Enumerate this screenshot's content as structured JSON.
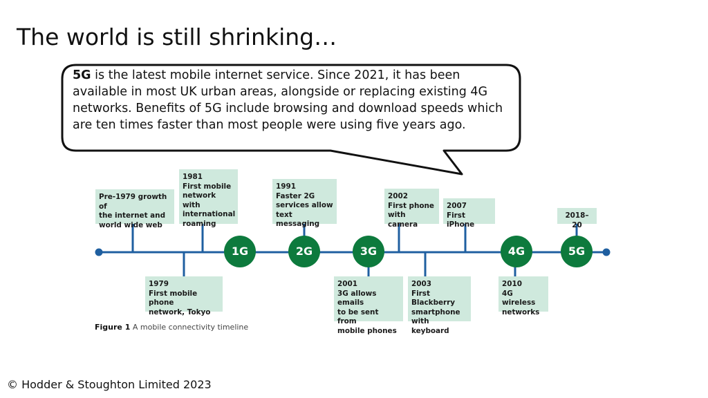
{
  "title": "The world is still shrinking…",
  "bubble": {
    "lead": "5G",
    "body": " is the latest mobile internet service. Since 2021, it has been available in most UK urban areas, alongside or replacing existing 4G networks. Benefits of 5G include browsing and download speeds which are ten times faster than most people were using five years ago."
  },
  "timeline": {
    "events_above": [
      {
        "text": "Pre-1979 growth of\nthe internet and\nworld wide web"
      },
      {
        "text": "1981\nFirst mobile\nnetwork with\ninternational\nroaming"
      },
      {
        "text": "1991\nFaster 2G\nservices allow\ntext messaging"
      },
      {
        "text": "2002\nFirst phone\nwith camera"
      },
      {
        "text": "2007\nFirst iPhone"
      },
      {
        "text": "2018–20"
      }
    ],
    "events_below": [
      {
        "text": "1979\nFirst mobile phone\nnetwork, Tokyo"
      },
      {
        "text": "2001\n3G allows emails\nto be sent from\nmobile phones"
      },
      {
        "text": "2003\nFirst Blackberry\nsmartphone\nwith keyboard"
      },
      {
        "text": "2010\n4G wireless\nnetworks"
      }
    ],
    "generations": [
      "1G",
      "2G",
      "3G",
      "4G",
      "5G"
    ],
    "colors": {
      "line": "#1f5fa0",
      "circle": "#0d7a3d",
      "box": "#cfe9dd"
    }
  },
  "caption": {
    "label": "Figure 1",
    "text": " A mobile connectivity timeline"
  },
  "copyright": "© Hodder & Stoughton Limited 2023"
}
